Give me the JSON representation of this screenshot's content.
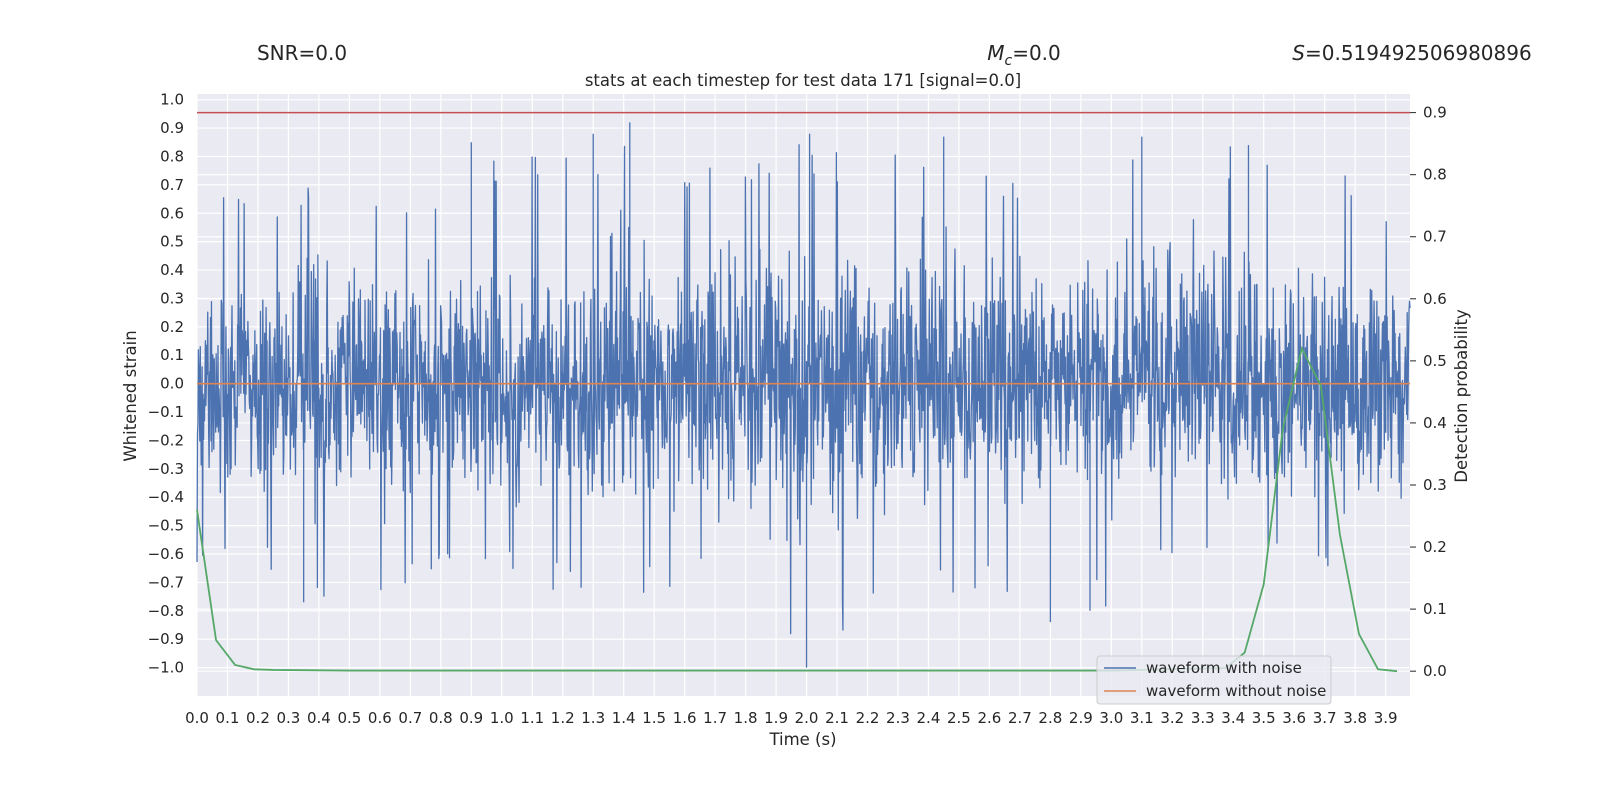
{
  "header": {
    "snr": "SNR=0.0",
    "mc_symbol": "M",
    "mc_sub": "c",
    "mc_value": "=0.0",
    "s_symbol": "S",
    "s_value": "=0.519492506980896"
  },
  "chart_data": {
    "type": "line",
    "title": "stats at each timestep for test data 171 [signal=0.0]",
    "xlabel": "Time (s)",
    "ylabel": "Whitened strain",
    "ylabel_right": "Detection probability",
    "xlim": [
      0.0,
      3.98
    ],
    "ylim": [
      -1.1,
      1.02
    ],
    "ylim_right": [
      -0.04,
      0.93
    ],
    "x_ticks": [
      "0.0",
      "0.1",
      "0.2",
      "0.3",
      "0.4",
      "0.5",
      "0.6",
      "0.7",
      "0.8",
      "0.9",
      "1.0",
      "1.1",
      "1.2",
      "1.3",
      "1.4",
      "1.5",
      "1.6",
      "1.7",
      "1.8",
      "1.9",
      "2.0",
      "2.1",
      "2.2",
      "2.3",
      "2.4",
      "2.5",
      "2.6",
      "2.7",
      "2.8",
      "2.9",
      "3.0",
      "3.1",
      "3.2",
      "3.3",
      "3.4",
      "3.5",
      "3.6",
      "3.7",
      "3.8",
      "3.9"
    ],
    "y_ticks": [
      "1.0",
      "0.9",
      "0.8",
      "0.7",
      "0.6",
      "0.5",
      "0.4",
      "0.3",
      "0.2",
      "0.1",
      "0.0",
      "−0.1",
      "−0.2",
      "−0.3",
      "−0.4",
      "−0.5",
      "−0.6",
      "−0.7",
      "−0.8",
      "−0.9",
      "−1.0"
    ],
    "y_right_ticks": [
      "0.9",
      "0.8",
      "0.7",
      "0.6",
      "0.5",
      "0.4",
      "0.3",
      "0.2",
      "0.1",
      "0.0"
    ],
    "grid": true,
    "legend": "lower-right",
    "threshold": 0.9,
    "series": [
      {
        "name": "waveform with noise",
        "color": "#4c72b0",
        "axis": "left",
        "note_envelope_x": [
          0.0,
          0.2,
          0.4,
          0.6,
          0.8,
          1.0,
          1.2,
          1.4,
          1.6,
          1.8,
          2.0,
          2.2,
          2.4,
          2.6,
          2.8,
          3.0,
          3.2,
          3.4,
          3.6,
          3.8,
          3.98
        ],
        "peaks_high": [
          0.73,
          0.65,
          0.7,
          0.68,
          0.63,
          0.85,
          0.79,
          0.92,
          0.8,
          0.8,
          0.88,
          0.78,
          0.87,
          0.81,
          0.64,
          0.78,
          0.87,
          0.84,
          0.75,
          0.73,
          0.52
        ],
        "peaks_low": [
          -0.68,
          -0.64,
          -0.77,
          -0.76,
          -0.68,
          -0.65,
          -0.74,
          -0.75,
          -0.71,
          -0.7,
          -1.0,
          -0.78,
          -0.74,
          -0.73,
          -0.84,
          -0.8,
          -0.64,
          -0.69,
          -0.62,
          -0.69,
          -0.66
        ],
        "seed": 171
      },
      {
        "name": "waveform without noise",
        "color": "#dd8452",
        "axis": "left",
        "x": [
          0.0,
          3.98
        ],
        "y": [
          0.0,
          0.0
        ]
      },
      {
        "name": "",
        "color": "#55a868",
        "axis": "right",
        "x": [
          0.0,
          0.0625,
          0.125,
          0.1875,
          0.25,
          0.5,
          1.0,
          1.5,
          2.0,
          2.5,
          3.0,
          3.375,
          3.4375,
          3.5,
          3.5625,
          3.625,
          3.6875,
          3.75,
          3.8125,
          3.875,
          3.9375
        ],
        "y": [
          0.26,
          0.05,
          0.01,
          0.003,
          0.002,
          0.001,
          0.001,
          0.001,
          0.001,
          0.001,
          0.001,
          0.005,
          0.03,
          0.14,
          0.39,
          0.52,
          0.46,
          0.22,
          0.06,
          0.003,
          0.0
        ]
      },
      {
        "name": "",
        "color": "#c44e52",
        "axis": "right",
        "x": [
          0.0,
          3.98
        ],
        "y": [
          0.9,
          0.9
        ]
      }
    ]
  }
}
